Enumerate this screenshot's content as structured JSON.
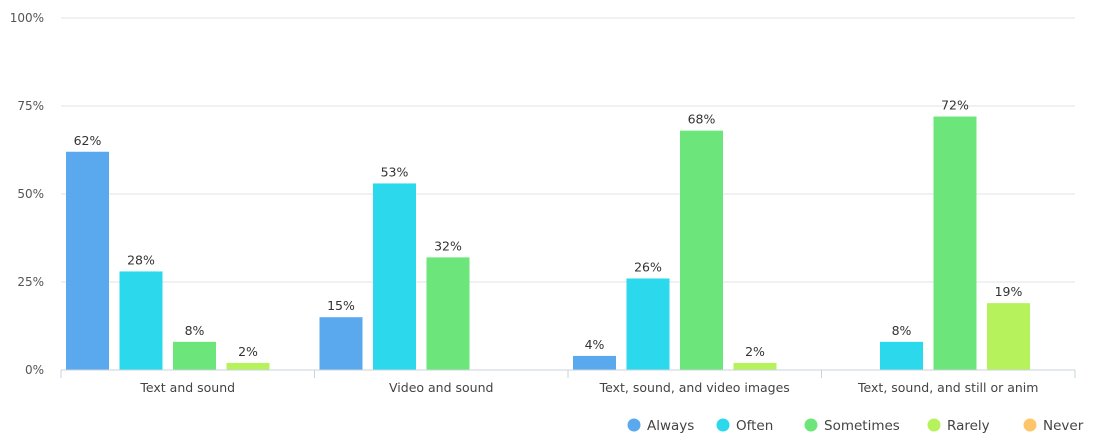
{
  "chart_data": {
    "type": "bar",
    "title": "",
    "xlabel": "",
    "ylabel": "",
    "ylim": [
      0,
      100
    ],
    "y_ticks": [
      "0%",
      "25%",
      "50%",
      "75%",
      "100%"
    ],
    "y_tick_values": [
      0,
      25,
      50,
      75,
      100
    ],
    "grid": true,
    "legend_position": "bottom-right",
    "categories": [
      "Text and sound",
      "Video and sound",
      "Text, sound, and video images",
      "Text, sound, and still or anim"
    ],
    "series": [
      {
        "name": "Always",
        "color": "#5aa9ee",
        "values": [
          62,
          15,
          4,
          null
        ],
        "labels": [
          "62%",
          "15%",
          "4%",
          ""
        ]
      },
      {
        "name": "Often",
        "color": "#2bd8ec",
        "values": [
          28,
          53,
          26,
          8
        ],
        "labels": [
          "28%",
          "53%",
          "26%",
          "8%"
        ]
      },
      {
        "name": "Sometimes",
        "color": "#6ce67a",
        "values": [
          8,
          32,
          68,
          72
        ],
        "labels": [
          "8%",
          "32%",
          "68%",
          "72%"
        ]
      },
      {
        "name": "Rarely",
        "color": "#b5f25c",
        "values": [
          2,
          null,
          2,
          19
        ],
        "labels": [
          "2%",
          "",
          "2%",
          "19%"
        ]
      },
      {
        "name": "Never",
        "color": "#ffc56b",
        "values": [
          null,
          null,
          null,
          null
        ],
        "labels": [
          "",
          "",
          "",
          ""
        ]
      }
    ]
  }
}
